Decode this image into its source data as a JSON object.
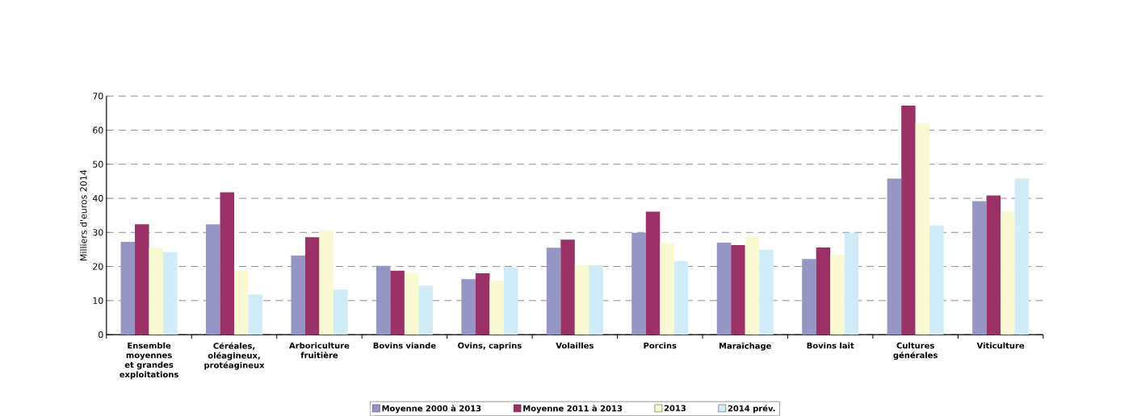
{
  "chart_data": {
    "type": "bar",
    "ylabel": "Milliers d'euros 2014",
    "categories": [
      "Ensemble moyennes et grandes exploitations",
      "Céréales, oléagineux, protéagineux",
      "Arboriculture fruitière",
      "Bovins viande",
      "Ovins, caprins",
      "Volailles",
      "Porcins",
      "Maraîchage",
      "Bovins lait",
      "Cultures générales",
      "Viticulture"
    ],
    "series": [
      {
        "name": "Moyenne 2000 à 2013",
        "color": "#9595c6",
        "values": [
          27.2,
          32.4,
          23.2,
          20.2,
          16.3,
          25.5,
          29.9,
          27.0,
          22.2,
          45.8,
          39.2
        ]
      },
      {
        "name": "Moyenne 2011 à 2013",
        "color": "#993366",
        "values": [
          32.4,
          41.8,
          28.6,
          18.8,
          18.0,
          27.9,
          36.1,
          26.3,
          25.6,
          67.2,
          40.8
        ]
      },
      {
        "name": "2013",
        "color": "#fafad2",
        "values": [
          25.6,
          18.8,
          30.6,
          18.1,
          15.8,
          20.4,
          26.8,
          28.7,
          23.5,
          62.1,
          36.1
        ]
      },
      {
        "name": "2014 prév.",
        "color": "#d1ecf7",
        "values": [
          24.2,
          11.8,
          13.2,
          14.4,
          19.8,
          20.4,
          21.6,
          24.9,
          29.9,
          32.1,
          45.8
        ]
      }
    ],
    "ylim": [
      0,
      70
    ],
    "yticks": [
      0,
      10,
      20,
      30,
      40,
      50,
      60,
      70
    ],
    "grid": "y",
    "legend": "bottom"
  }
}
